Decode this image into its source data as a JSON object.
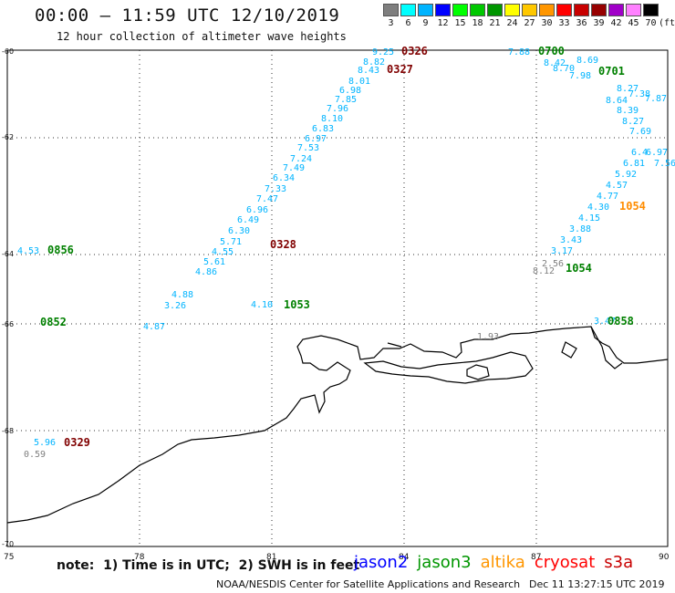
{
  "header": {
    "title": "00:00 – 11:59 UTC 12/10/2019",
    "subtitle": "12 hour collection of altimeter wave heights"
  },
  "color_scale": {
    "values": [
      "3",
      "6",
      "9",
      "12",
      "15",
      "18",
      "21",
      "24",
      "27",
      "30",
      "33",
      "36",
      "39",
      "42",
      "45",
      "70"
    ],
    "unit": "(ft)",
    "colors": [
      "#7f7f7f",
      "#00ffff",
      "#00b4ff",
      "#0000ff",
      "#00ff00",
      "#00c800",
      "#009600",
      "#ffff00",
      "#ffc800",
      "#ff9600",
      "#ff0000",
      "#c80000",
      "#960000",
      "#a000c8",
      "#ff80ff",
      "#000000"
    ]
  },
  "axes": {
    "lon_ticks": [
      "75",
      "78",
      "81",
      "84",
      "87",
      "90"
    ],
    "lat_ticks": [
      "-60",
      "-62",
      "-64",
      "-66",
      "-68",
      "-70"
    ]
  },
  "tracks": {
    "colors": {
      "jason2": "#0000ff",
      "jason3": "#009600",
      "altika": "#ff9600",
      "cryosat": "#ff0000",
      "s3a": "#c80000",
      "swh": "#00b4ff",
      "swh_low": "#00e6e6",
      "grey": "#7f7f7f",
      "darkred": "#800000",
      "darkgreen": "#008000",
      "orange": "#ff8c00"
    },
    "labels": [
      {
        "t": "9.25",
        "c": "swh"
      },
      {
        "t": "0326",
        "c": "darkred"
      },
      {
        "t": "8.82",
        "c": "swh"
      },
      {
        "t": "8.43",
        "c": "swh"
      },
      {
        "t": "0327",
        "c": "darkred"
      },
      {
        "t": "8.01",
        "c": "swh"
      },
      {
        "t": "6.98",
        "c": "swh"
      },
      {
        "t": "7.85",
        "c": "swh"
      },
      {
        "t": "7.96",
        "c": "swh"
      },
      {
        "t": "8.10",
        "c": "swh"
      },
      {
        "t": "6.83",
        "c": "swh"
      },
      {
        "t": "6.97",
        "c": "swh"
      },
      {
        "t": "7.53",
        "c": "swh"
      },
      {
        "t": "7.24",
        "c": "swh"
      },
      {
        "t": "7.49",
        "c": "swh"
      },
      {
        "t": "6.34",
        "c": "swh"
      },
      {
        "t": "7.33",
        "c": "swh"
      },
      {
        "t": "7.47",
        "c": "swh"
      },
      {
        "t": "6.96",
        "c": "swh"
      },
      {
        "t": "6.49",
        "c": "swh"
      },
      {
        "t": "0328",
        "c": "darkred"
      },
      {
        "t": "6.30",
        "c": "swh"
      },
      {
        "t": "5.71",
        "c": "swh"
      },
      {
        "t": "4.55",
        "c": "swh"
      },
      {
        "t": "5.61",
        "c": "swh"
      },
      {
        "t": "4.86",
        "c": "swh"
      },
      {
        "t": "4.88",
        "c": "swh"
      },
      {
        "t": "3.26",
        "c": "swh"
      },
      {
        "t": "4.87",
        "c": "swh"
      },
      {
        "t": "4.10",
        "c": "swh"
      },
      {
        "t": "1053",
        "c": "darkgreen"
      },
      {
        "t": "4.53",
        "c": "swh"
      },
      {
        "t": "0856",
        "c": "darkgreen"
      },
      {
        "t": "0852",
        "c": "darkgreen"
      },
      {
        "t": "5.96",
        "c": "swh"
      },
      {
        "t": "0329",
        "c": "darkred"
      },
      {
        "t": "0.59",
        "c": "grey"
      },
      {
        "t": "1.93",
        "c": "grey"
      },
      {
        "t": "7.88",
        "c": "swh"
      },
      {
        "t": "0700",
        "c": "darkgreen"
      },
      {
        "t": "8.69",
        "c": "swh"
      },
      {
        "t": "8.42",
        "c": "swh"
      },
      {
        "t": "8.70",
        "c": "swh"
      },
      {
        "t": "0701",
        "c": "darkgreen"
      },
      {
        "t": "7.98",
        "c": "swh"
      },
      {
        "t": "8.27",
        "c": "swh"
      },
      {
        "t": "7.38",
        "c": "swh"
      },
      {
        "t": "8.64",
        "c": "swh"
      },
      {
        "t": "7.87",
        "c": "swh"
      },
      {
        "t": "8.39",
        "c": "swh"
      },
      {
        "t": "8.27",
        "c": "swh"
      },
      {
        "t": "7.69",
        "c": "swh"
      },
      {
        "t": "6.81",
        "c": "swh"
      },
      {
        "t": "5.92",
        "c": "swh"
      },
      {
        "t": "4.57",
        "c": "swh"
      },
      {
        "t": "4.77",
        "c": "swh"
      },
      {
        "t": "4.30",
        "c": "swh"
      },
      {
        "t": "1054",
        "c": "orange"
      },
      {
        "t": "4.15",
        "c": "swh"
      },
      {
        "t": "3.88",
        "c": "swh"
      },
      {
        "t": "3.43",
        "c": "swh"
      },
      {
        "t": "3.17",
        "c": "swh"
      },
      {
        "t": "8.12",
        "c": "grey"
      },
      {
        "t": "2.56",
        "c": "grey"
      },
      {
        "t": "1054",
        "c": "darkgreen"
      },
      {
        "t": "3.47",
        "c": "swh"
      },
      {
        "t": "0858",
        "c": "darkgreen"
      },
      {
        "t": "7.56",
        "c": "swh"
      },
      {
        "t": "6.4",
        "c": "swh"
      },
      {
        "t": "6.97",
        "c": "swh"
      }
    ]
  },
  "footer": {
    "note": "note:  1) Time is in UTC;  2) SWH is in feet",
    "legend": [
      {
        "name": "jason2",
        "color": "#0000ff"
      },
      {
        "name": "jason3",
        "color": "#009600"
      },
      {
        "name": "altika",
        "color": "#ff9600"
      },
      {
        "name": "cryosat",
        "color": "#ff0000"
      },
      {
        "name": "s3a",
        "color": "#c80000"
      }
    ],
    "credit": "NOAA/NESDIS Center for Satellite Applications and Research",
    "timestamp": "Dec 11 13:27:15 UTC 2019"
  }
}
